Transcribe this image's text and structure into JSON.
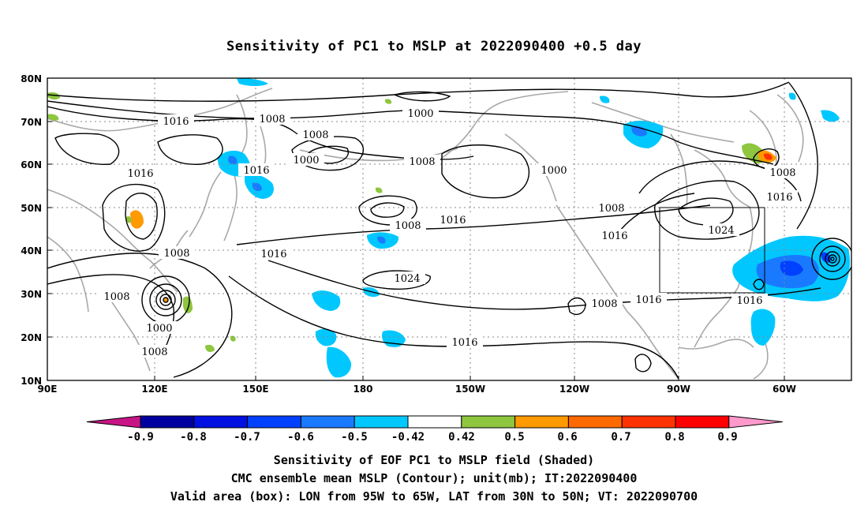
{
  "title": "Sensitivity of PC1 to MSLP at 2022090400 +0.5 day",
  "axes": {
    "lat_labels": [
      "80N",
      "70N",
      "60N",
      "50N",
      "40N",
      "30N",
      "20N",
      "10N"
    ],
    "lon_labels": [
      "90E",
      "120E",
      "150E",
      "180",
      "150W",
      "120W",
      "90W",
      "60W"
    ]
  },
  "contour_labels": [
    "1016",
    "1008",
    "1000",
    "1008",
    "1000",
    "1008",
    "1016",
    "1000",
    "1008",
    "1016",
    "1008",
    "1016",
    "1008",
    "1016",
    "1024",
    "1016",
    "1024",
    "1008",
    "1000",
    "1008",
    "1008",
    "1016",
    "1016",
    "1016",
    "1016",
    "1008"
  ],
  "colorbar": {
    "ticks": [
      "-0.9",
      "-0.8",
      "-0.7",
      "-0.6",
      "-0.5",
      "-0.42",
      "0.42",
      "0.5",
      "0.6",
      "0.7",
      "0.8",
      "0.9"
    ],
    "colors": [
      "#c71585",
      "#0000a0",
      "#0010e0",
      "#0040ff",
      "#1a7aff",
      "#00c8ff",
      "#ffffff",
      "#8ec63f",
      "#ff9a00",
      "#ff6a00",
      "#ff3300",
      "#ff0000",
      "#ff99cc"
    ]
  },
  "captions": {
    "line1": "Sensitivity of EOF PC1 to MSLP field (Shaded)",
    "line2": "CMC ensemble mean MSLP (Contour); unit(mb); IT:2022090400",
    "line3": "Valid area (box): LON from 95W to 65W, LAT from 30N to 50N; VT: 2022090700"
  }
}
